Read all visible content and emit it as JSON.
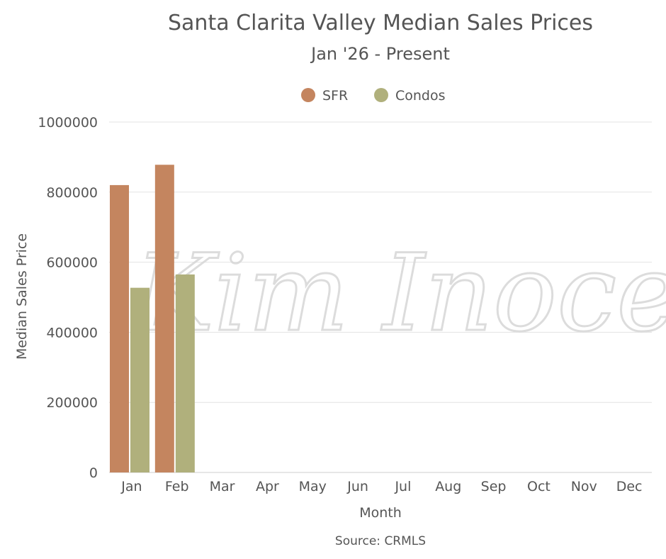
{
  "chart_data": {
    "type": "bar",
    "title": "Santa Clarita Valley Median Sales Prices",
    "subtitle": "Jan '26 - Present",
    "xlabel": "Month",
    "ylabel": "Median Sales Price",
    "source": "Source: CRMLS",
    "watermark": "Kim Inocente",
    "categories": [
      "Jan",
      "Feb",
      "Mar",
      "Apr",
      "May",
      "Jun",
      "Jul",
      "Aug",
      "Sep",
      "Oct",
      "Nov",
      "Dec"
    ],
    "series": [
      {
        "name": "SFR",
        "color": "#c4855f",
        "values": [
          820000,
          878000,
          null,
          null,
          null,
          null,
          null,
          null,
          null,
          null,
          null,
          null
        ]
      },
      {
        "name": "Condos",
        "color": "#b0b07c",
        "values": [
          527000,
          565000,
          null,
          null,
          null,
          null,
          null,
          null,
          null,
          null,
          null,
          null
        ]
      }
    ],
    "ylim": [
      0,
      1000000
    ],
    "yticks": [
      0,
      200000,
      400000,
      600000,
      800000,
      1000000
    ],
    "grid": true,
    "legend_position": "top-center"
  }
}
